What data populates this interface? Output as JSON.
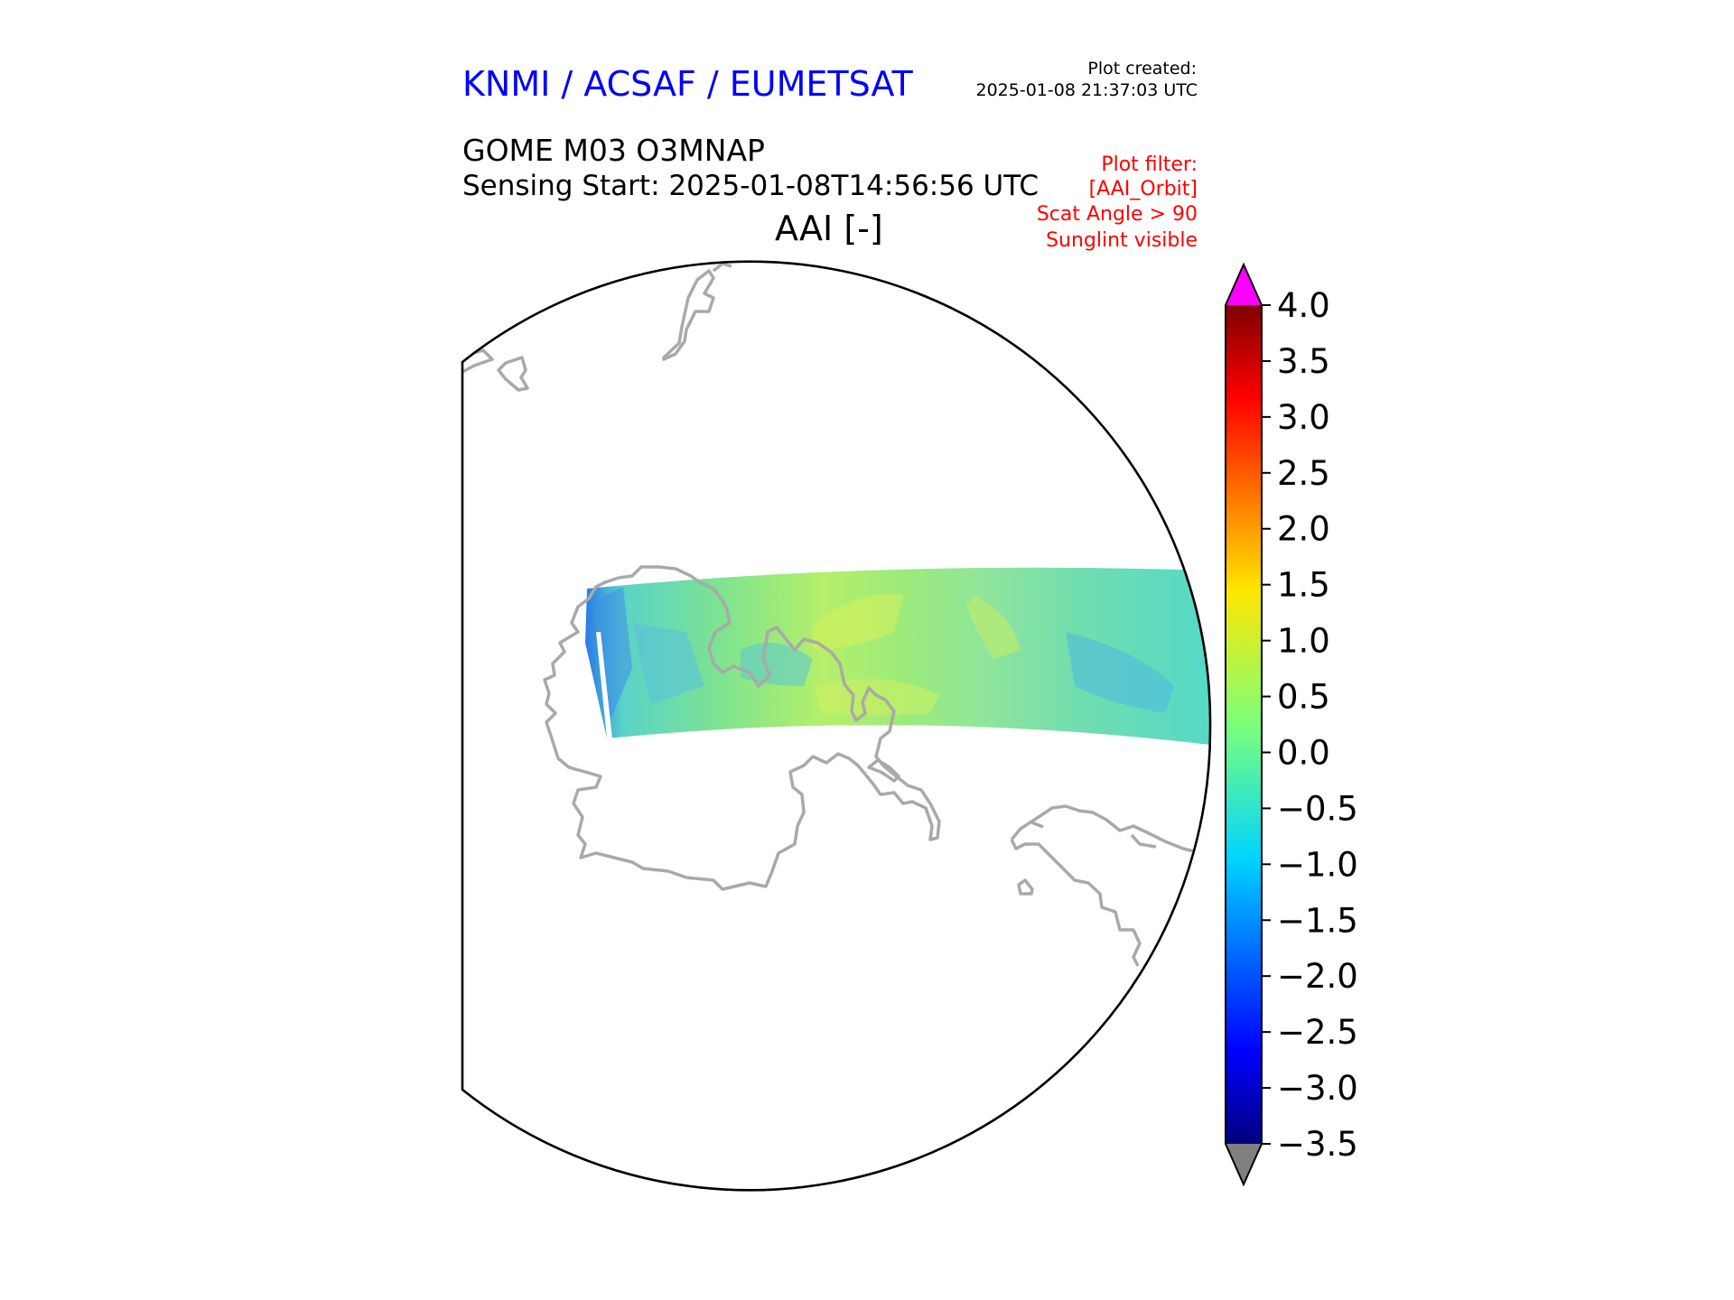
{
  "header": {
    "agency": "KNMI / ACSAF / EUMETSAT",
    "plot_created_label": "Plot created:",
    "plot_created_value": "2025-01-08 21:37:03 UTC",
    "product": "GOME M03 O3MNAP",
    "sensing_start": "Sensing Start: 2025-01-08T14:56:56 UTC",
    "quantity": "AAI [-]"
  },
  "filter": {
    "label": "Plot filter:",
    "items": [
      "[AAI_Orbit]",
      "Scat Angle > 90",
      "Sunglint visible"
    ]
  },
  "colorbar": {
    "min": -3.5,
    "max": 4.0,
    "ticks": [
      "4.0",
      "3.5",
      "3.0",
      "2.5",
      "2.0",
      "1.5",
      "1.0",
      "0.5",
      "0.0",
      "−0.5",
      "−1.0",
      "−1.5",
      "−2.0",
      "−2.5",
      "−3.0",
      "−3.5"
    ],
    "over_color": "#ff00ff",
    "under_color": "#808080",
    "colormap": "jet"
  },
  "colors": {
    "coastline": "#a9a9a9",
    "map_border": "#000000"
  }
}
